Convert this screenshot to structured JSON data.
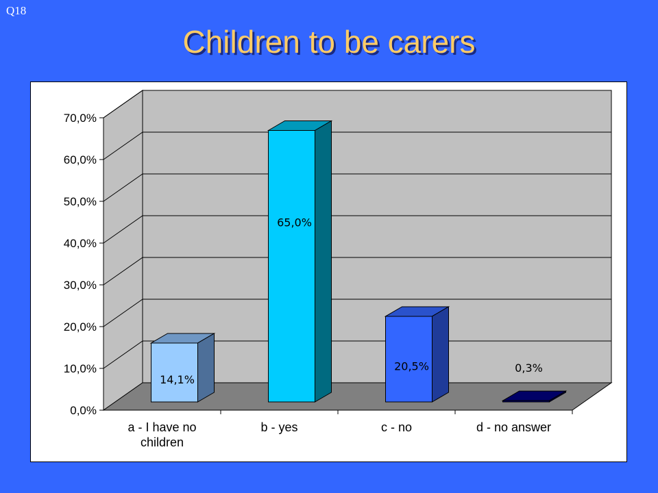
{
  "slide": {
    "label": "Q18",
    "title": "Children to be carers"
  },
  "chart_data": {
    "type": "bar",
    "title": "Children to be carers",
    "categories": [
      [
        "a - I have no",
        "children"
      ],
      [
        "b - yes"
      ],
      [
        "c - no"
      ],
      [
        "d - no answer"
      ]
    ],
    "values": [
      14.1,
      65.0,
      20.5,
      0.3
    ],
    "data_labels": [
      "14,1%",
      "65,0%",
      "20,5%",
      "0,3%"
    ],
    "ylim": [
      0,
      70
    ],
    "yticks": [
      "0,0%",
      "10,0%",
      "20,0%",
      "30,0%",
      "40,0%",
      "50,0%",
      "60,0%",
      "70,0%"
    ],
    "xlabel": "",
    "ylabel": "",
    "grid": true,
    "legend": "none",
    "colors": {
      "bars": [
        {
          "front": "#99ccff",
          "top": "#6f97c4",
          "side": "#4d6f99"
        },
        {
          "front": "#00ccff",
          "top": "#0099bb",
          "side": "#006a80"
        },
        {
          "front": "#3366ff",
          "top": "#2a52cc",
          "side": "#1f3b99"
        },
        {
          "front": "#000080",
          "top": "#000066",
          "side": "#00004d"
        }
      ],
      "wall": "#c0c0c0",
      "floor": "#808080",
      "background": "#3366ff",
      "title": "#ffcc66"
    }
  }
}
